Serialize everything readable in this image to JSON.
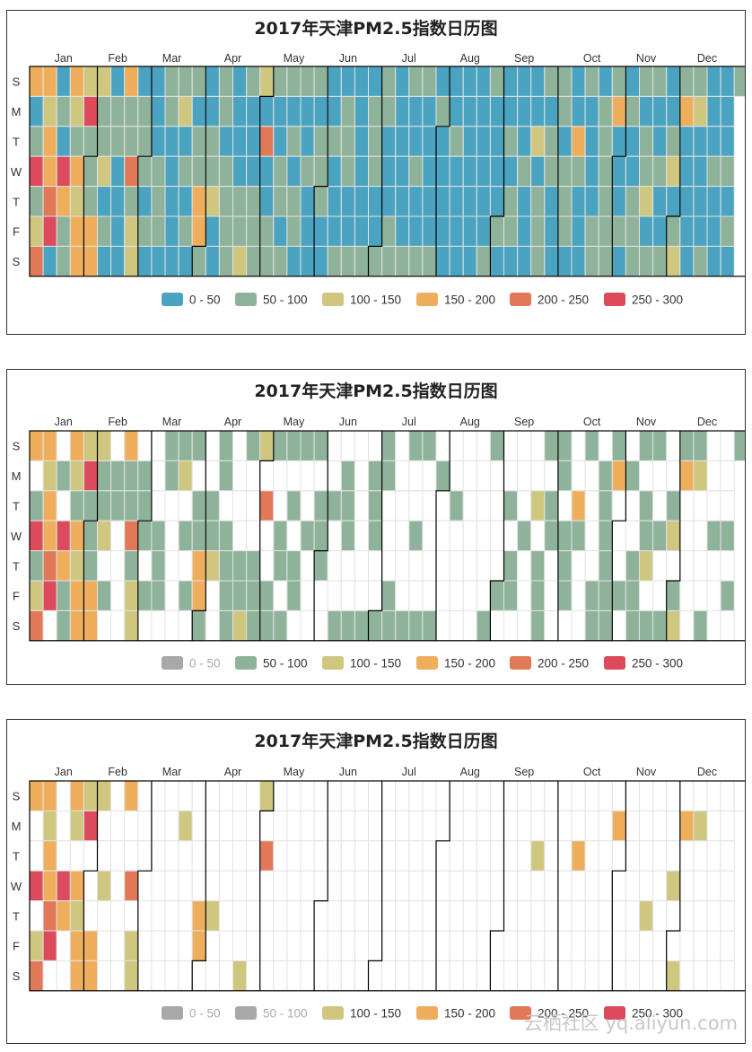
{
  "watermark": "云栖社区 yq.aliyun.com",
  "legend_colors": [
    "#4aa3c0",
    "#8fb39a",
    "#cfc77f",
    "#efae5c",
    "#e17857",
    "#dc4a5c"
  ],
  "legend_disabled_color": "#a8a8a8",
  "chart_data": [
    {
      "type": "heatmap",
      "title": "2017年天津PM2.5指数日历图",
      "year": 2017,
      "month_labels": [
        "Jan",
        "Feb",
        "Mar",
        "Apr",
        "May",
        "Jun",
        "Jul",
        "Aug",
        "Sep",
        "Oct",
        "Nov",
        "Dec"
      ],
      "day_labels": [
        "S",
        "M",
        "T",
        "W",
        "T",
        "F",
        "S"
      ],
      "legend": [
        "0 - 50",
        "50 - 100",
        "100 - 150",
        "150 - 200",
        "200 - 250",
        "250 - 300"
      ],
      "legend_enabled": [
        true,
        true,
        true,
        true,
        true,
        true
      ],
      "legend_placement": "bottom-center",
      "daily_level_by_month": [
        "3015124323345001053113213233251",
        "1133211201001100003114122011",
        "1010000111011000001201010101133",
        "100112001101111000011210001112",
        "0400111001101101011010010001011",
        "100001000101110010000001011100",
        "1110001100000011001001100000101",
        "0000000100000000000000000110000",
        "100010110000100000201111011000",
        "1101110003100010000110111111130",
        "001001001111011201100100100120",
        "1213000001200001000100000010101"
      ]
    },
    {
      "type": "heatmap",
      "title": "2017年天津PM2.5指数日历图",
      "year": 2017,
      "month_labels": [
        "Jan",
        "Feb",
        "Mar",
        "Apr",
        "May",
        "Jun",
        "Jul",
        "Aug",
        "Sep",
        "Oct",
        "Nov",
        "Dec"
      ],
      "day_labels": [
        "S",
        "M",
        "T",
        "W",
        "T",
        "F",
        "S"
      ],
      "legend": [
        "0 - 50",
        "50 - 100",
        "100 - 150",
        "150 - 200",
        "200 - 250",
        "250 - 300"
      ],
      "legend_enabled": [
        false,
        true,
        true,
        true,
        true,
        true
      ],
      "legend_placement": "bottom-center",
      "daily_level_by_month": [
        "3015124323345001053113213233251",
        "1133211201001100003114122011",
        "1010000111011000001201010101133",
        "100112001101111000011210001112",
        "0400111001101101011010010001011",
        "100001000101110010000001011100",
        "1110001100000011001001100000101",
        "0000000100000000000000000110000",
        "100010110000100000201111011000",
        "1101110003100010000110111111130",
        "001001001111011201100100100120",
        "1213000001200001000100000010101"
      ]
    },
    {
      "type": "heatmap",
      "title": "2017年天津PM2.5指数日历图",
      "year": 2017,
      "month_labels": [
        "Jan",
        "Feb",
        "Mar",
        "Apr",
        "May",
        "Jun",
        "Jul",
        "Aug",
        "Sep",
        "Oct",
        "Nov",
        "Dec"
      ],
      "day_labels": [
        "S",
        "M",
        "T",
        "W",
        "T",
        "F",
        "S"
      ],
      "legend": [
        "0 - 50",
        "50 - 100",
        "100 - 150",
        "150 - 200",
        "200 - 250",
        "250 - 300"
      ],
      "legend_enabled": [
        false,
        false,
        true,
        true,
        true,
        true
      ],
      "legend_placement": "bottom-center",
      "daily_level_by_month": [
        "3015124323345001053113213233251",
        "1133211201001100003114122011",
        "1010000111011000001201010101133",
        "100112001101111000011210001112",
        "0400111001101101011010010001011",
        "100001000101110010000001011100",
        "1110001100000011001001100000101",
        "0000000100000000000000000110000",
        "100010110000100000201111011000",
        "1101110003100010000110111111130",
        "001001001111011201100100100120",
        "1213000001200001000100000010101"
      ]
    }
  ]
}
